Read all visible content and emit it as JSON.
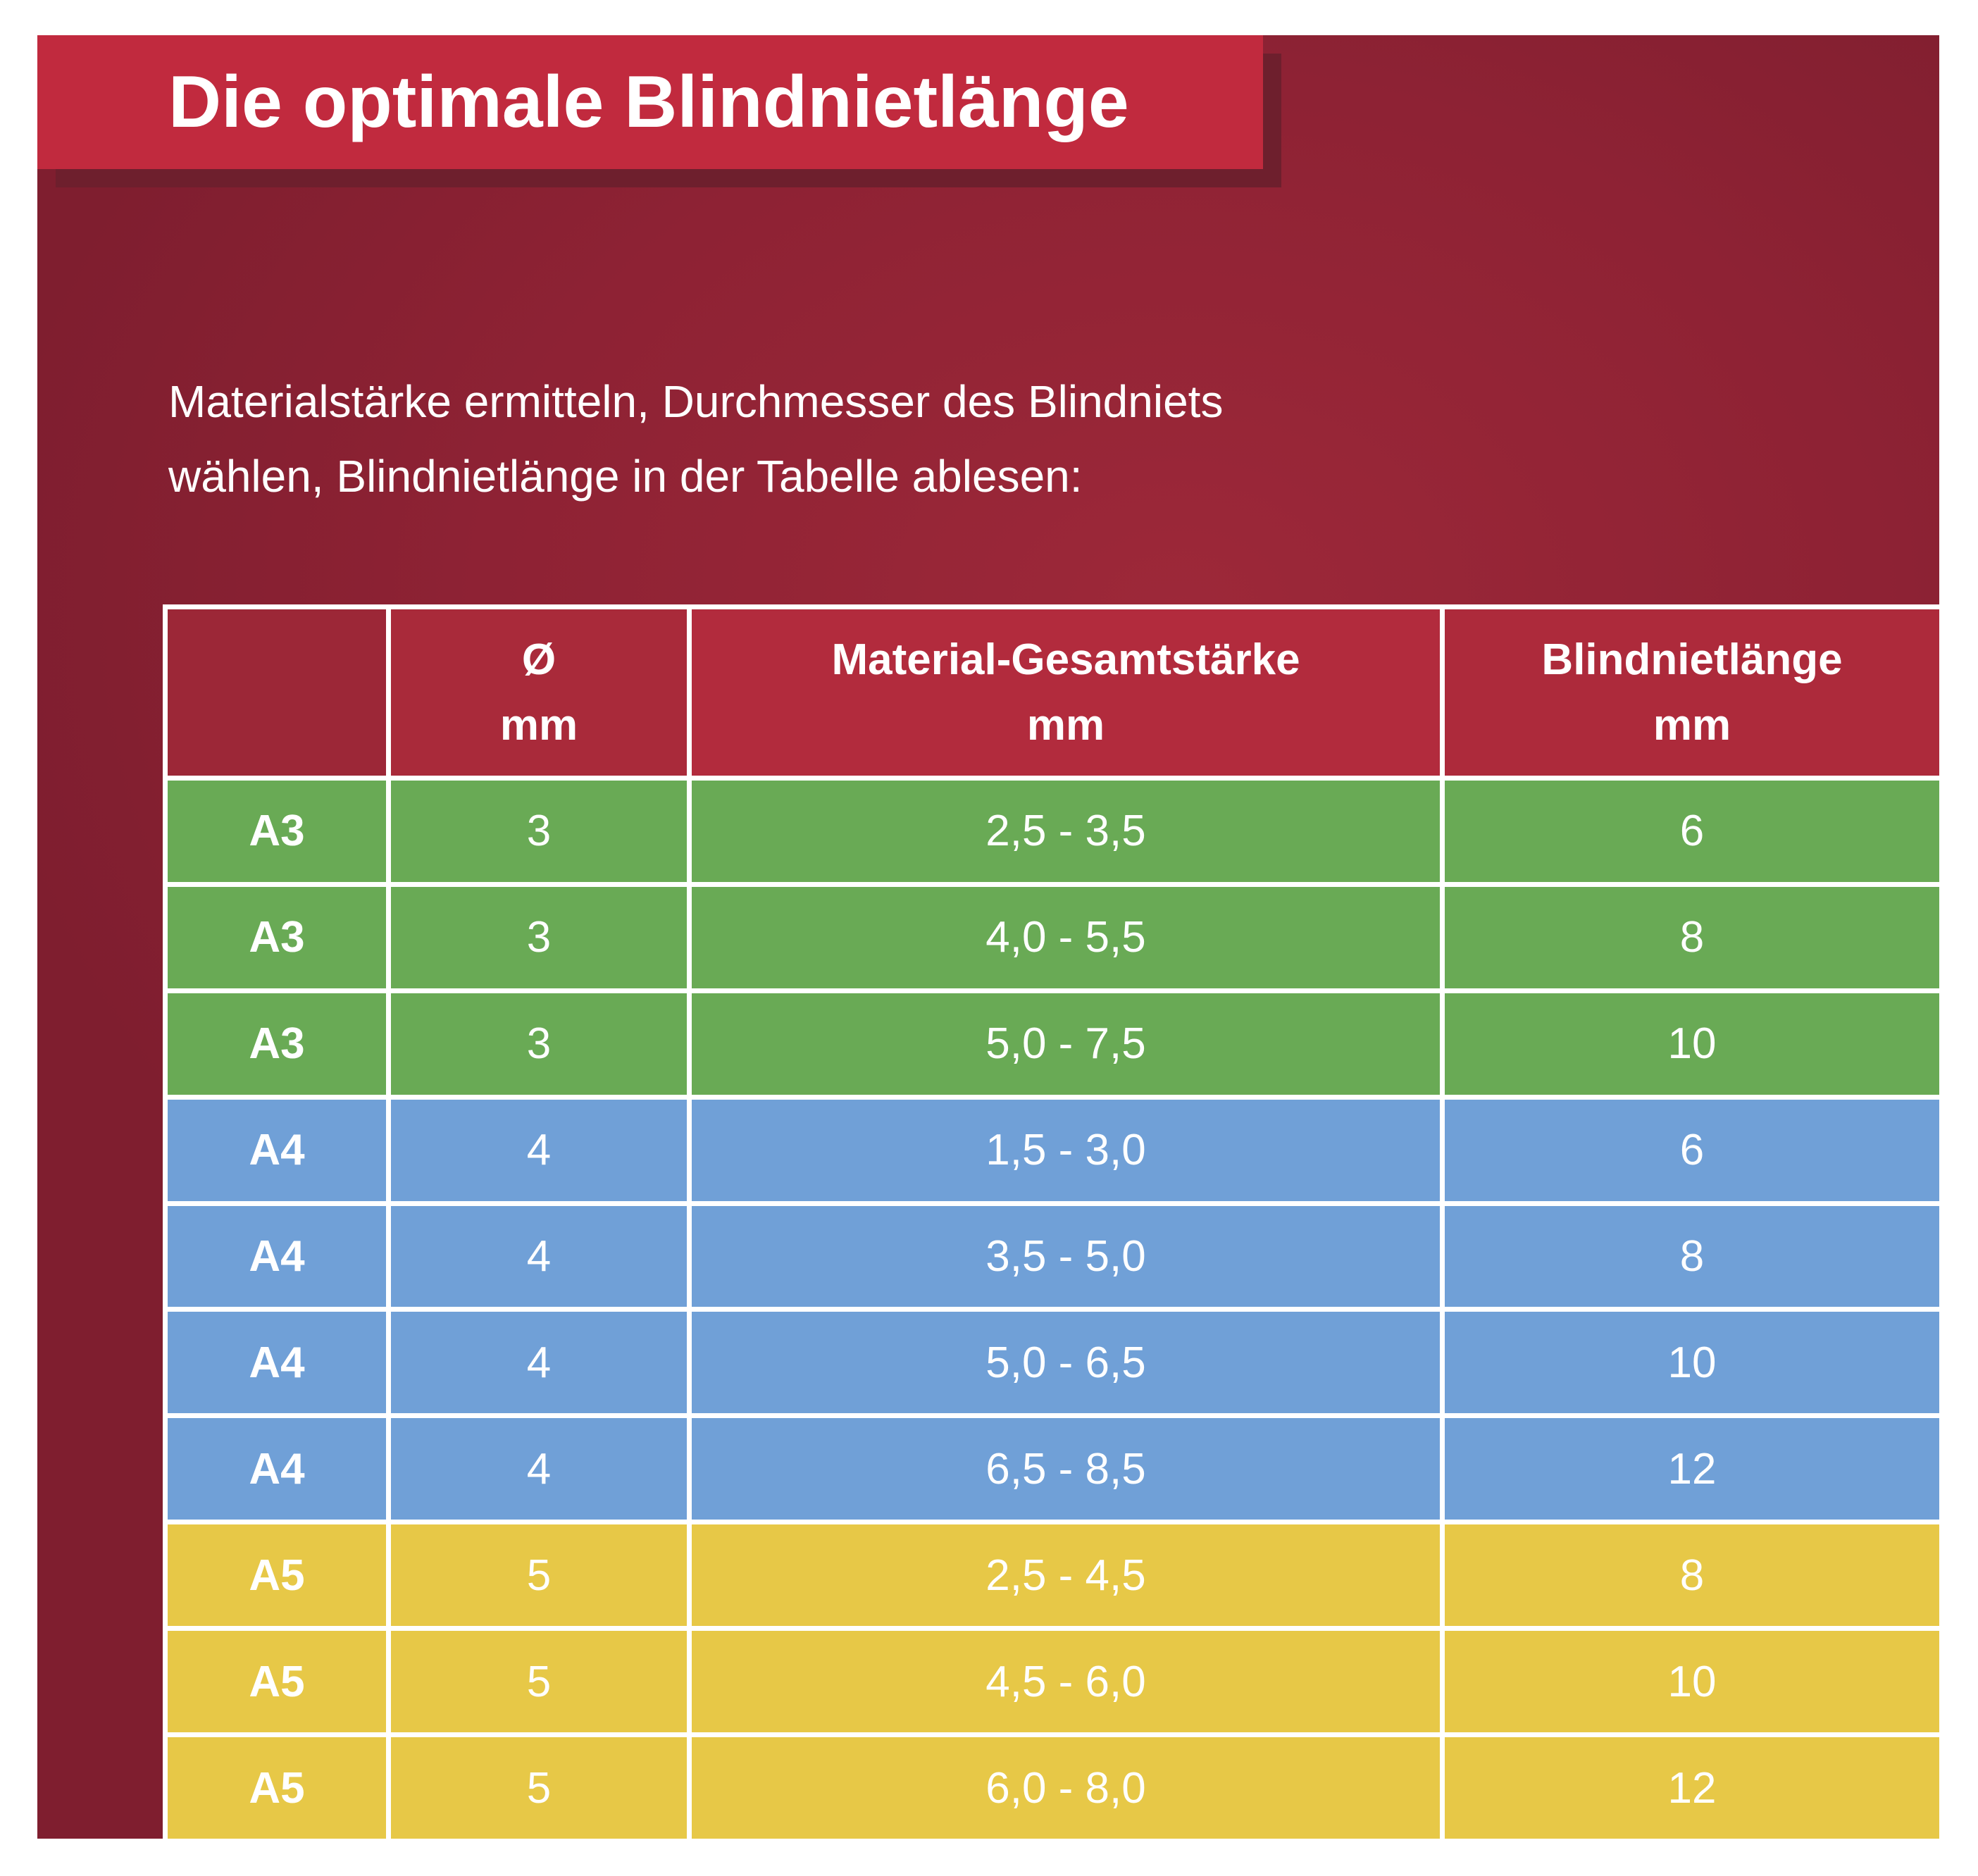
{
  "banner": {
    "title": "Die optimale Blindnietlänge"
  },
  "intro": {
    "line1": "Materialstärke ermitteln, Durchmesser des Blindniets",
    "line2": "wählen, Blindnietlänge in der Tabelle ablesen:"
  },
  "table": {
    "header": {
      "spacer": "",
      "diameter_label": "Ø",
      "diameter_unit": "mm",
      "material_label": "Material-Gesamtstärke",
      "material_unit": "mm",
      "length_label": "Blindnietlänge",
      "length_unit": "mm"
    },
    "rows": [
      {
        "label": "A3",
        "diameter": "3",
        "range": "2,5 - 3,5",
        "length": "6",
        "color": "#69aa55"
      },
      {
        "label": "A3",
        "diameter": "3",
        "range": "4,0 - 5,5",
        "length": "8",
        "color": "#69aa55"
      },
      {
        "label": "A3",
        "diameter": "3",
        "range": "5,0 - 7,5",
        "length": "10",
        "color": "#69aa55"
      },
      {
        "label": "A4",
        "diameter": "4",
        "range": "1,5 - 3,0",
        "length": "6",
        "color": "#70a0d7"
      },
      {
        "label": "A4",
        "diameter": "4",
        "range": "3,5 - 5,0",
        "length": "8",
        "color": "#70a0d7"
      },
      {
        "label": "A4",
        "diameter": "4",
        "range": "5,0 - 6,5",
        "length": "10",
        "color": "#70a0d7"
      },
      {
        "label": "A4",
        "diameter": "4",
        "range": "6,5 - 8,5",
        "length": "12",
        "color": "#70a0d7"
      },
      {
        "label": "A5",
        "diameter": "5",
        "range": "2,5 - 4,5",
        "length": "8",
        "color": "#e7c847"
      },
      {
        "label": "A5",
        "diameter": "5",
        "range": "4,5 - 6,0",
        "length": "10",
        "color": "#e7c847"
      },
      {
        "label": "A5",
        "diameter": "5",
        "range": "6,0 - 8,0",
        "length": "12",
        "color": "#e7c847"
      }
    ]
  },
  "colors": {
    "banner_red": "#c12a3e",
    "banner_shadow": "#6e1f2d",
    "background_maroon": "#8e2234",
    "header_c0": "#9c2737",
    "header_c1": "#a92a3a",
    "header_c2": "#b22b3d",
    "header_c3": "#ad2a3b",
    "row_green": "#69aa55",
    "row_blue": "#70a0d7",
    "row_yellow": "#e7c847",
    "grid_line": "#ffffff",
    "text": "#ffffff"
  },
  "chart_data": {
    "type": "table",
    "title": "Die optimale Blindnietlänge",
    "note": "Materialstärke ermitteln, Durchmesser des Blindniets wählen, Blindnietlänge in der Tabelle ablesen:",
    "columns": [
      "",
      "Ø mm",
      "Material-Gesamtstärke mm",
      "Blindnietlänge mm"
    ],
    "rows": [
      [
        "A3",
        "3",
        "2,5 - 3,5",
        "6"
      ],
      [
        "A3",
        "3",
        "4,0 - 5,5",
        "8"
      ],
      [
        "A3",
        "3",
        "5,0 - 7,5",
        "10"
      ],
      [
        "A4",
        "4",
        "1,5 - 3,0",
        "6"
      ],
      [
        "A4",
        "4",
        "3,5 - 5,0",
        "8"
      ],
      [
        "A4",
        "4",
        "5,0 - 6,5",
        "10"
      ],
      [
        "A4",
        "4",
        "6,5 - 8,5",
        "12"
      ],
      [
        "A5",
        "5",
        "2,5 - 4,5",
        "8"
      ],
      [
        "A5",
        "5",
        "4,5 - 6,0",
        "10"
      ],
      [
        "A5",
        "5",
        "6,0 - 8,0",
        "12"
      ]
    ],
    "row_groups": [
      {
        "label": "A3",
        "color": "#69aa55",
        "row_count": 3
      },
      {
        "label": "A4",
        "color": "#70a0d7",
        "row_count": 4
      },
      {
        "label": "A5",
        "color": "#e7c847",
        "row_count": 3
      }
    ]
  }
}
